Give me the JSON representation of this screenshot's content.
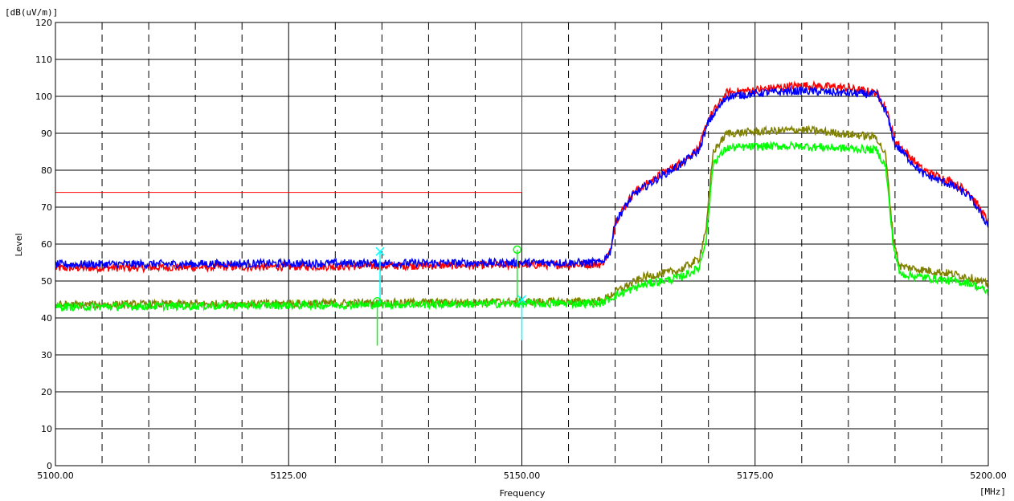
{
  "chart_data": {
    "type": "line",
    "title": "",
    "y_unit": "[dB(uV/m)]",
    "x_unit": "[MHz]",
    "xlabel": "Frequency",
    "ylabel": "Level",
    "xlim": [
      5100,
      5200
    ],
    "ylim": [
      0,
      120
    ],
    "x_ticks": [
      "5100.00",
      "5125.00",
      "5150.00",
      "5175.00",
      "5200.00"
    ],
    "y_ticks": [
      "0",
      "10",
      "20",
      "30",
      "40",
      "50",
      "60",
      "70",
      "80",
      "90",
      "100",
      "110",
      "120"
    ],
    "grid": true,
    "series": [
      {
        "color": "#ff0000",
        "x": [
          5100,
          5130,
          5158.5,
          5159.5,
          5160,
          5162,
          5165,
          5167,
          5169,
          5170,
          5172,
          5176,
          5180,
          5184,
          5188,
          5189,
          5190,
          5193,
          5196,
          5198,
          5200
        ],
        "y": [
          53.5,
          54,
          54.5,
          58,
          66,
          74,
          79,
          82,
          86,
          94,
          101,
          102,
          103,
          102.5,
          101,
          97,
          88,
          80,
          77,
          74,
          66
        ]
      },
      {
        "color": "#0000ff",
        "x": [
          5100,
          5130,
          5158.5,
          5159.5,
          5160,
          5162,
          5165,
          5167,
          5169,
          5170,
          5172,
          5176,
          5180,
          5184,
          5188,
          5189,
          5190,
          5193,
          5196,
          5198,
          5200
        ],
        "y": [
          54.5,
          54.8,
          55,
          58,
          66,
          73.5,
          78.5,
          81.5,
          85.5,
          93,
          100,
          101,
          101.5,
          101,
          100.5,
          96,
          87,
          79,
          76,
          73,
          65
        ]
      },
      {
        "color": "#808000",
        "x": [
          5100,
          5130,
          5158.5,
          5160,
          5163,
          5167,
          5169,
          5169.8,
          5170.5,
          5172,
          5176,
          5180,
          5184,
          5188,
          5189,
          5189.8,
          5190.5,
          5193,
          5196,
          5198,
          5200
        ],
        "y": [
          43.5,
          44,
          44.5,
          47,
          51,
          53,
          56,
          65,
          85,
          90,
          90.5,
          91,
          90,
          89,
          84,
          62,
          54,
          53,
          52,
          51,
          49
        ]
      },
      {
        "color": "#00ff00",
        "x": [
          5100,
          5130,
          5158.5,
          5160,
          5163,
          5167,
          5169,
          5169.8,
          5170.5,
          5172,
          5176,
          5180,
          5184,
          5188,
          5189,
          5189.8,
          5190.5,
          5193,
          5196,
          5198,
          5200
        ],
        "y": [
          43,
          43.5,
          44,
          46,
          49,
          51,
          53.5,
          62,
          82,
          86,
          86.5,
          86.5,
          86,
          85.5,
          81,
          60,
          52,
          51,
          50,
          49.5,
          47
        ]
      }
    ],
    "limit_line": {
      "color": "#ff0000",
      "x": [
        5100,
        5150
      ],
      "y": 74,
      "x_vertical": 5150
    },
    "markers": [
      {
        "color": "#00ffff",
        "symbol": "x",
        "x": 5134.8,
        "y_top": 58,
        "y_bottom": 44
      },
      {
        "color": "#00ff00",
        "symbol": "o",
        "x": 5134.5,
        "y_top": 44.5,
        "y_bottom": 32.5
      },
      {
        "color": "#00ff00",
        "symbol": "o",
        "x": 5149.5,
        "y_top": 58.5,
        "y_bottom": 44
      },
      {
        "color": "#00ffff",
        "symbol": "x",
        "x": 5150,
        "y_top": 45,
        "y_bottom": 34
      }
    ]
  }
}
